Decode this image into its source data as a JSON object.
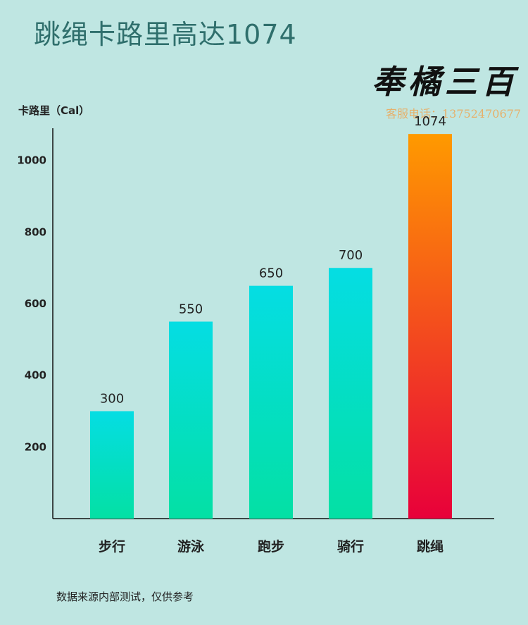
{
  "title": "跳绳卡路里高达1074",
  "brand": {
    "logo_text": "奉橘三百",
    "contact": "客服电话：13752470677"
  },
  "footnote": "数据来源内部测试，仅供参考",
  "colors": {
    "background": "#bfe6e2",
    "title": "#2f6f6c",
    "bar_top": "#05dde3",
    "bar_bottom": "#04e0a4",
    "highlight_top": "#ff9a00",
    "highlight_bottom": "#e8003a"
  },
  "chart_data": {
    "type": "bar",
    "ylabel": "卡路里（Cal）",
    "categories": [
      "步行",
      "游泳",
      "跑步",
      "骑行",
      "跳绳"
    ],
    "values": [
      300,
      550,
      650,
      700,
      1074
    ],
    "data_labels": [
      "300",
      "550",
      "650",
      "700",
      "1074"
    ],
    "y_ticks": [
      200,
      400,
      600,
      800,
      1000
    ],
    "ylim": [
      0,
      1090
    ],
    "highlight_category": "跳绳",
    "grid": false,
    "legend": "none"
  }
}
